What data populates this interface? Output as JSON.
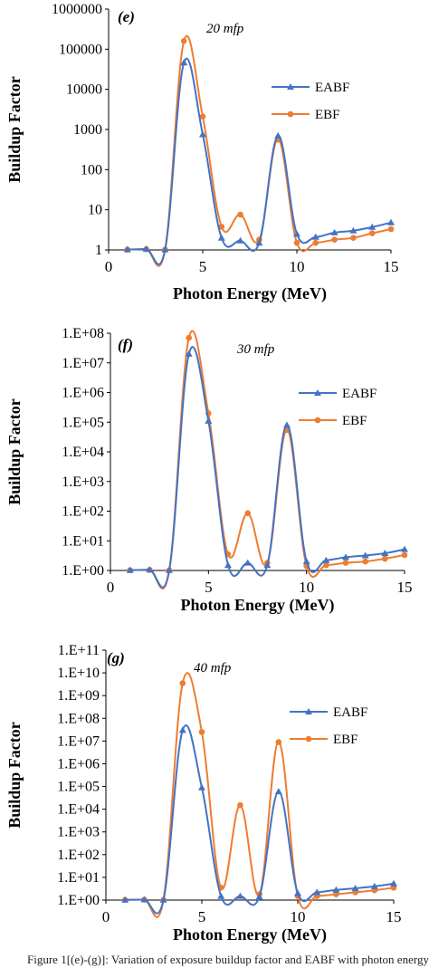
{
  "colors": {
    "EABF": "#4472C4",
    "EBF": "#ED7D31",
    "axis": "#000000"
  },
  "caption": "Figure 1[(e)-(g)]: Variation of exposure buildup factor and EABF with photon energy",
  "chart_data": [
    {
      "type": "line",
      "panel_label": "(e)",
      "annotation": "20 mfp",
      "xlabel": "Photon Energy (MeV)",
      "ylabel": "Buildup Factor",
      "x_scale": "linear",
      "y_scale": "log",
      "xlim": [
        0,
        15
      ],
      "ylim": [
        1,
        1000000
      ],
      "xticks": [
        "0",
        "5",
        "10",
        "15"
      ],
      "xtick_values": [
        0,
        5,
        10,
        15
      ],
      "ytick_values": [
        1,
        10,
        100,
        1000,
        10000,
        100000,
        1000000
      ],
      "yticks": [
        "1",
        "10",
        "100",
        "1000",
        "10000",
        "100000",
        "1000000"
      ],
      "legend": "right",
      "series": [
        {
          "name": "EABF",
          "marker": "triangle",
          "x": [
            1,
            2,
            3,
            4,
            5,
            6,
            7,
            8,
            9,
            10,
            11,
            12,
            13,
            14,
            15
          ],
          "y": [
            1.02,
            1.05,
            1.02,
            46000,
            750,
            2.0,
            1.7,
            1.5,
            700,
            2.5,
            2.1,
            2.7,
            3.0,
            3.7,
            4.8
          ]
        },
        {
          "name": "EBF",
          "marker": "circle",
          "x": [
            1,
            2,
            3,
            4,
            5,
            6,
            7,
            8,
            9,
            10,
            11,
            12,
            13,
            14,
            15
          ],
          "y": [
            1.02,
            1.05,
            1.02,
            160000,
            2100,
            3.8,
            7.6,
            1.8,
            560,
            1.5,
            1.5,
            1.8,
            2.0,
            2.6,
            3.3
          ]
        }
      ]
    },
    {
      "type": "line",
      "panel_label": "(f)",
      "annotation": "30 mfp",
      "xlabel": "Photon Energy (MeV)",
      "ylabel": "Buildup Factor",
      "x_scale": "linear",
      "y_scale": "log",
      "xlim": [
        0,
        15
      ],
      "ylim": [
        1,
        100000000
      ],
      "xticks": [
        "0",
        "5",
        "10",
        "15"
      ],
      "xtick_values": [
        0,
        5,
        10,
        15
      ],
      "ytick_values": [
        1,
        10,
        100,
        1000,
        10000,
        100000,
        1000000,
        10000000,
        100000000
      ],
      "yticks": [
        "1.E+00",
        "1.E+01",
        "1.E+02",
        "1.E+03",
        "1.E+04",
        "1.E+05",
        "1.E+06",
        "1.E+07",
        "1.E+08"
      ],
      "legend": "right",
      "series": [
        {
          "name": "EABF",
          "marker": "triangle",
          "x": [
            1,
            2,
            3,
            4,
            5,
            6,
            7,
            8,
            9,
            10,
            11,
            12,
            13,
            14,
            15
          ],
          "y": [
            1.02,
            1.05,
            1.02,
            20000000,
            110000,
            1.5,
            1.8,
            1.5,
            80000,
            2.0,
            2.2,
            2.8,
            3.2,
            3.8,
            5.2
          ]
        },
        {
          "name": "EBF",
          "marker": "circle",
          "x": [
            1,
            2,
            3,
            4,
            5,
            6,
            7,
            8,
            9,
            10,
            11,
            12,
            13,
            14,
            15
          ],
          "y": [
            1.02,
            1.05,
            1.02,
            70000000,
            200000,
            3.5,
            85,
            1.8,
            55000,
            1.4,
            1.5,
            1.8,
            2.0,
            2.5,
            3.3
          ]
        }
      ]
    },
    {
      "type": "line",
      "panel_label": "(g)",
      "annotation": "40 mfp",
      "xlabel": "Photon Energy (MeV)",
      "ylabel": "Buildup Factor",
      "x_scale": "linear",
      "y_scale": "log",
      "xlim": [
        0,
        15
      ],
      "ylim": [
        1,
        100000000000
      ],
      "xticks": [
        "0",
        "5",
        "10",
        "15"
      ],
      "xtick_values": [
        0,
        5,
        10,
        15
      ],
      "ytick_values": [
        1,
        10,
        100,
        1000,
        10000,
        100000,
        1000000,
        10000000,
        100000000,
        1000000000,
        10000000000,
        100000000000
      ],
      "yticks": [
        "1.E+00",
        "1.E+01",
        "1.E+02",
        "1.E+03",
        "1.E+04",
        "1.E+05",
        "1.E+06",
        "1.E+07",
        "1.E+08",
        "1.E+09",
        "1.E+10",
        "1.E+11"
      ],
      "legend": "right",
      "series": [
        {
          "name": "EABF",
          "marker": "triangle",
          "x": [
            1,
            2,
            3,
            4,
            5,
            6,
            7,
            8,
            9,
            10,
            11,
            12,
            13,
            14,
            15
          ],
          "y": [
            1.02,
            1.05,
            1.02,
            30000000,
            90000,
            1.5,
            1.5,
            1.4,
            60000,
            2.0,
            2.2,
            2.8,
            3.3,
            4.0,
            5.3
          ]
        },
        {
          "name": "EBF",
          "marker": "circle",
          "x": [
            1,
            2,
            3,
            4,
            5,
            6,
            7,
            8,
            9,
            10,
            11,
            12,
            13,
            14,
            15
          ],
          "y": [
            1.02,
            1.05,
            1.02,
            3500000000,
            25000000,
            3.5,
            15000,
            1.8,
            9000000,
            1.5,
            1.5,
            1.8,
            2.2,
            2.7,
            3.5
          ]
        }
      ]
    }
  ]
}
